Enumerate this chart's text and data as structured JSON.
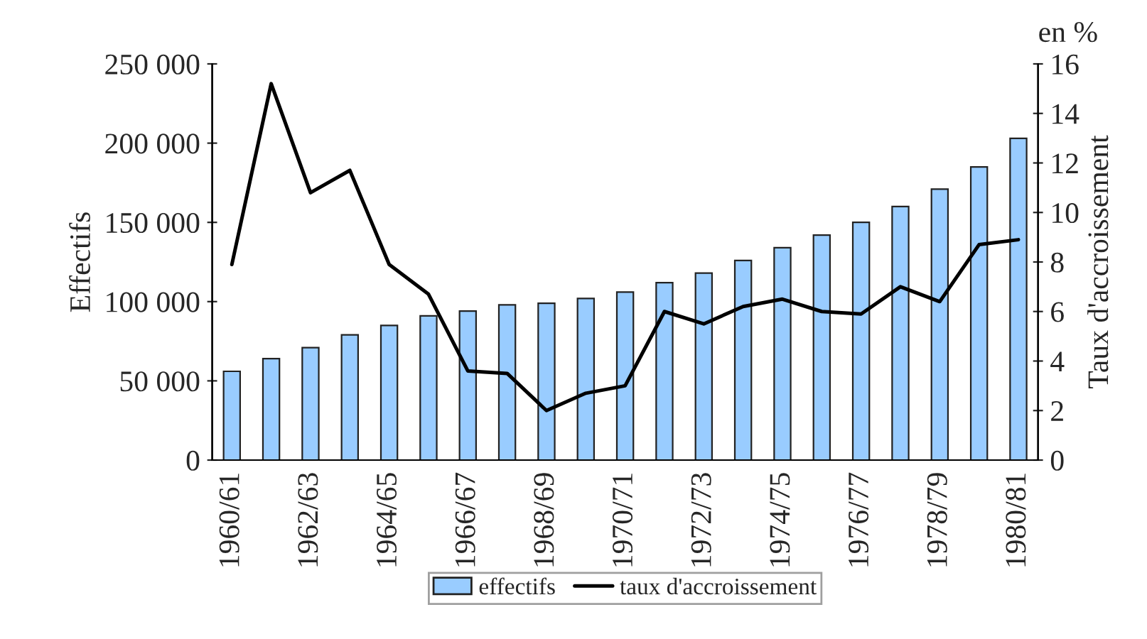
{
  "chart_data": {
    "type": "bar",
    "ylabel": "Effectifs",
    "y2label": "Taux d'accroissement",
    "annotations": [
      "en %"
    ],
    "categories": [
      "1960/61",
      null,
      "1962/63",
      null,
      "1964/65",
      null,
      "1966/67",
      null,
      "1968/69",
      null,
      "1970/71",
      null,
      "1972/73",
      null,
      "1974/75",
      null,
      "1976/77",
      null,
      "1978/79",
      null,
      "1980/81"
    ],
    "series": [
      {
        "name": "effectifs",
        "color": "#99ccff",
        "values": [
          56000,
          64000,
          71000,
          79000,
          85000,
          91000,
          94000,
          98000,
          99000,
          102000,
          106000,
          112000,
          118000,
          126000,
          134000,
          142000,
          150000,
          160000,
          171000,
          185000,
          203000
        ]
      },
      {
        "name": "taux d'accroissement",
        "type": "line",
        "axis": "y2",
        "color": "#000000",
        "values": [
          7.9,
          15.2,
          10.8,
          11.7,
          7.9,
          6.7,
          3.6,
          3.5,
          2.0,
          2.7,
          3.0,
          6.0,
          5.5,
          6.2,
          6.5,
          6.0,
          5.9,
          7.0,
          6.4,
          8.7,
          8.9
        ]
      }
    ],
    "ylim": [
      0,
      250000
    ],
    "yticks": [
      {
        "value": 0,
        "label": "0"
      },
      {
        "value": 50000,
        "label": "50 000"
      },
      {
        "value": 100000,
        "label": "100 000"
      },
      {
        "value": 150000,
        "label": "150 000"
      },
      {
        "value": 200000,
        "label": "200 000"
      },
      {
        "value": 250000,
        "label": "250 000"
      }
    ],
    "y2lim": [
      0,
      16
    ],
    "y2ticks": [
      0,
      2,
      4,
      6,
      8,
      10,
      12,
      14,
      16
    ],
    "legend": "bottom",
    "grid": false
  }
}
